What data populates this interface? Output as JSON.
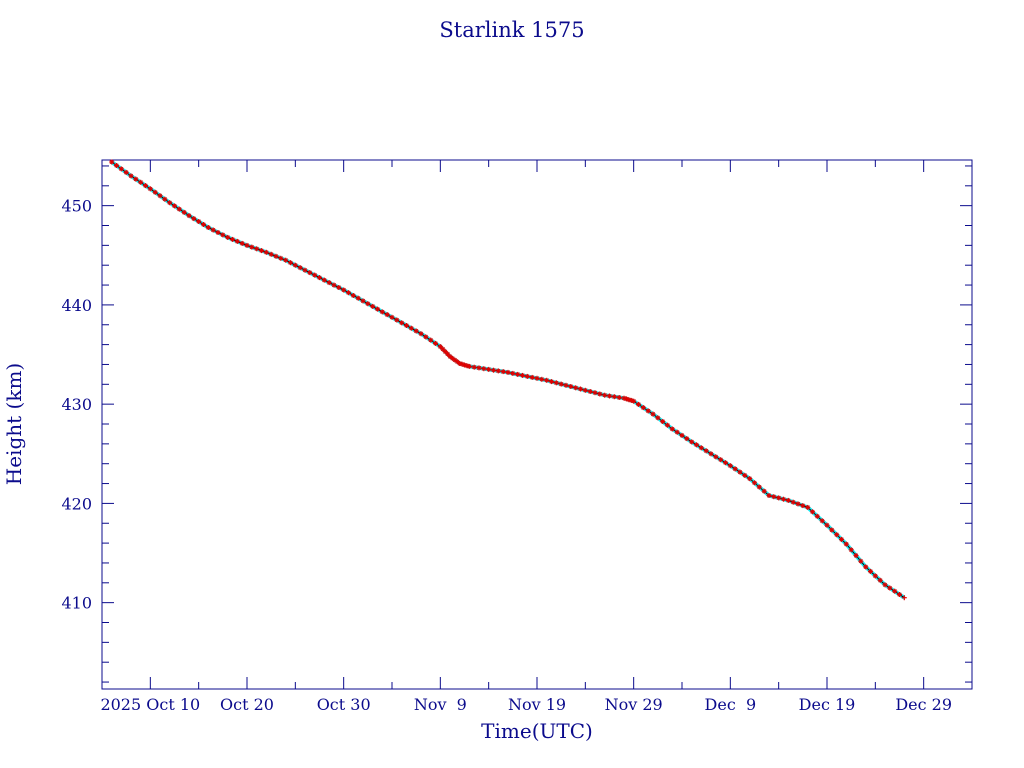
{
  "chart_data": {
    "type": "line",
    "title": "Starlink 1575",
    "xlabel": "Time(UTC)",
    "ylabel": "Height (km)",
    "x_axis": {
      "unit": "days",
      "min_date": "2025-10-05",
      "max_date": "2026-01-03",
      "major_ticks": [
        {
          "date": "2025-10-10",
          "label": "2025 Oct 10"
        },
        {
          "date": "2025-10-20",
          "label": "Oct 20"
        },
        {
          "date": "2025-10-30",
          "label": "Oct 30"
        },
        {
          "date": "2025-11-09",
          "label": "Nov  9"
        },
        {
          "date": "2025-11-19",
          "label": "Nov 19"
        },
        {
          "date": "2025-11-29",
          "label": "Nov 29"
        },
        {
          "date": "2025-12-09",
          "label": "Dec  9"
        },
        {
          "date": "2025-12-19",
          "label": "Dec 19"
        },
        {
          "date": "2025-12-29",
          "label": "Dec 29"
        }
      ]
    },
    "ylim": [
      401.3,
      454.6
    ],
    "y_major_ticks": [
      410,
      420,
      430,
      440,
      450
    ],
    "y_minor_step": 2,
    "grid": false,
    "colors": {
      "axes": "#0b0b8c",
      "line": "#000000",
      "model_points": "#00e5ee",
      "observed_points": "#e00000"
    },
    "series": [
      {
        "role": "height_track",
        "points": [
          [
            "2025-10-06",
            454.4
          ],
          [
            "2025-10-08",
            453.0
          ],
          [
            "2025-10-10",
            451.7
          ],
          [
            "2025-10-12",
            450.3
          ],
          [
            "2025-10-14",
            449.0
          ],
          [
            "2025-10-16",
            447.8
          ],
          [
            "2025-10-18",
            446.8
          ],
          [
            "2025-10-20",
            446.0
          ],
          [
            "2025-10-22",
            445.3
          ],
          [
            "2025-10-24",
            444.5
          ],
          [
            "2025-10-26",
            443.5
          ],
          [
            "2025-10-28",
            442.5
          ],
          [
            "2025-10-30",
            441.5
          ],
          [
            "2025-11-01",
            440.4
          ],
          [
            "2025-11-03",
            439.3
          ],
          [
            "2025-11-05",
            438.2
          ],
          [
            "2025-11-07",
            437.1
          ],
          [
            "2025-11-09",
            435.8
          ],
          [
            "2025-11-10",
            434.8
          ],
          [
            "2025-11-11",
            434.1
          ],
          [
            "2025-11-12",
            433.8
          ],
          [
            "2025-11-14",
            433.5
          ],
          [
            "2025-11-16",
            433.2
          ],
          [
            "2025-11-18",
            432.8
          ],
          [
            "2025-11-20",
            432.4
          ],
          [
            "2025-11-22",
            431.9
          ],
          [
            "2025-11-24",
            431.4
          ],
          [
            "2025-11-26",
            430.9
          ],
          [
            "2025-11-28",
            430.6
          ],
          [
            "2025-11-29",
            430.3
          ],
          [
            "2025-12-01",
            429.0
          ],
          [
            "2025-12-03",
            427.5
          ],
          [
            "2025-12-05",
            426.2
          ],
          [
            "2025-12-07",
            425.0
          ],
          [
            "2025-12-09",
            423.8
          ],
          [
            "2025-12-11",
            422.5
          ],
          [
            "2025-12-13",
            420.8
          ],
          [
            "2025-12-15",
            420.3
          ],
          [
            "2025-12-17",
            419.6
          ],
          [
            "2025-12-19",
            417.8
          ],
          [
            "2025-12-21",
            415.9
          ],
          [
            "2025-12-23",
            413.6
          ],
          [
            "2025-12-25",
            411.8
          ],
          [
            "2025-12-27",
            410.5
          ]
        ]
      }
    ]
  }
}
